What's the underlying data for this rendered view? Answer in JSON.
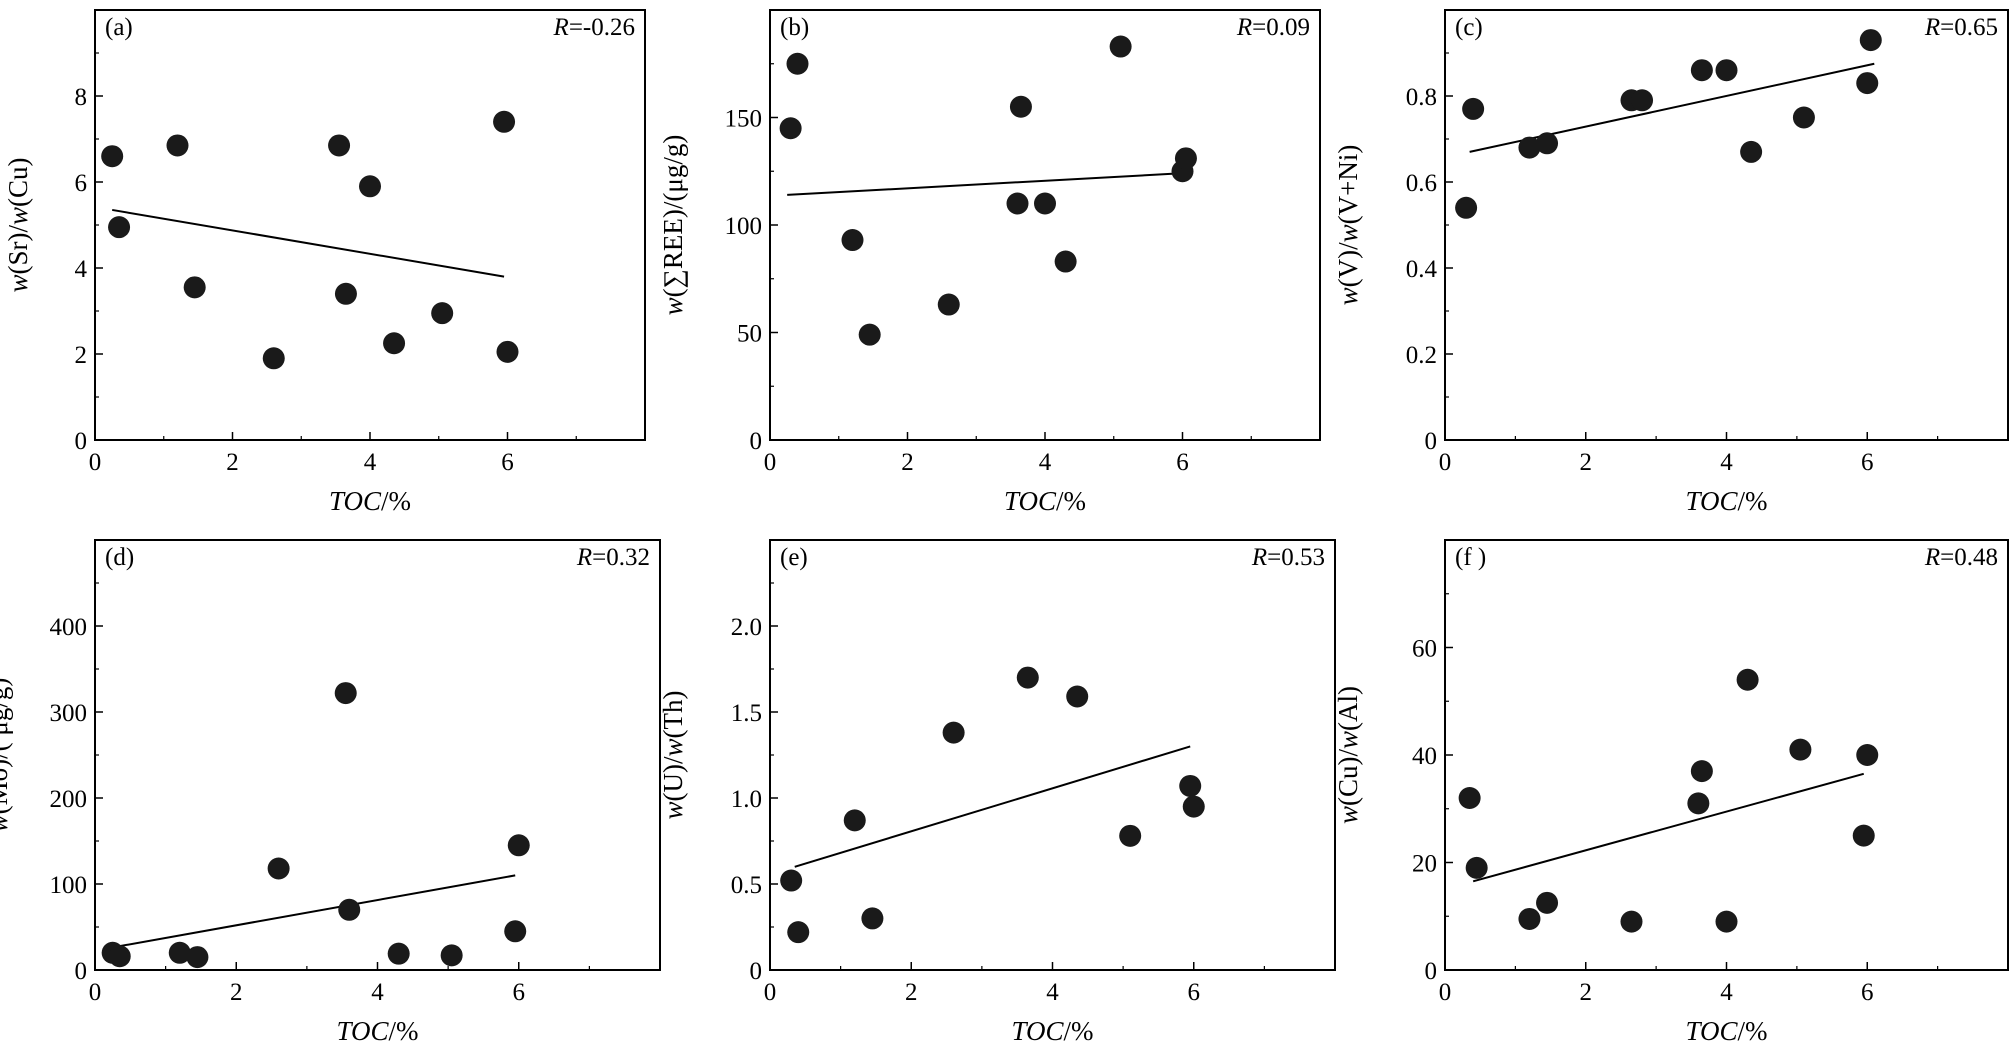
{
  "figure": {
    "background": "#ffffff",
    "marker_color": "#1a1a1a",
    "line_color": "#000000"
  },
  "chart_data": [
    {
      "type": "scatter",
      "panel_label": "(a)",
      "r_label": {
        "var": "R",
        "value": "=-0.26"
      },
      "xlabel": {
        "var": "TOC",
        "unit": "/%"
      },
      "ylabel": {
        "prefix": "w",
        "num": "(Sr)",
        "sep": "/",
        "prefix2": "w",
        "den": "(Cu)"
      },
      "xlim": [
        0,
        8
      ],
      "ylim": [
        0,
        10
      ],
      "xticks": [
        0,
        2,
        4,
        6
      ],
      "xtick_labels": [
        "0",
        "2",
        "4",
        "6"
      ],
      "yticks": [
        0,
        2,
        4,
        6,
        8
      ],
      "ytick_labels": [
        "0",
        "2",
        "4",
        "6",
        "8"
      ],
      "points": [
        [
          0.25,
          6.6
        ],
        [
          0.35,
          4.95
        ],
        [
          1.2,
          6.85
        ],
        [
          1.45,
          3.55
        ],
        [
          2.6,
          1.9
        ],
        [
          3.55,
          6.85
        ],
        [
          3.65,
          3.4
        ],
        [
          4.0,
          5.9
        ],
        [
          4.35,
          2.25
        ],
        [
          5.05,
          2.95
        ],
        [
          5.95,
          7.4
        ],
        [
          6.0,
          2.05
        ]
      ],
      "fit_line": [
        [
          0.25,
          5.35
        ],
        [
          5.95,
          3.8
        ]
      ],
      "grid": false
    },
    {
      "type": "scatter",
      "panel_label": "(b)",
      "r_label": {
        "var": "R",
        "value": "=0.09"
      },
      "xlabel": {
        "var": "TOC",
        "unit": "/%"
      },
      "ylabel": {
        "prefix": "w",
        "num": "(∑REE)",
        "sep": "/",
        "prefix2": "",
        "den": "(μg/g)"
      },
      "xlim": [
        0,
        8
      ],
      "ylim": [
        0,
        200
      ],
      "xticks": [
        0,
        2,
        4,
        6
      ],
      "xtick_labels": [
        "0",
        "2",
        "4",
        "6"
      ],
      "yticks": [
        0,
        50,
        100,
        150
      ],
      "ytick_labels": [
        "0",
        "50",
        "100",
        "150"
      ],
      "points": [
        [
          0.3,
          145
        ],
        [
          0.4,
          175
        ],
        [
          1.2,
          93
        ],
        [
          1.45,
          49
        ],
        [
          2.6,
          63
        ],
        [
          3.6,
          110
        ],
        [
          3.65,
          155
        ],
        [
          4.0,
          110
        ],
        [
          4.3,
          83
        ],
        [
          5.1,
          183
        ],
        [
          6.0,
          125
        ],
        [
          6.05,
          131
        ]
      ],
      "fit_line": [
        [
          0.25,
          114
        ],
        [
          5.95,
          124
        ]
      ],
      "grid": false
    },
    {
      "type": "scatter",
      "panel_label": "(c)",
      "r_label": {
        "var": "R",
        "value": "=0.65"
      },
      "xlabel": {
        "var": "TOC",
        "unit": "/%"
      },
      "ylabel": {
        "prefix": "w",
        "num": "(V)",
        "sep": "/",
        "prefix2": "w",
        "den": "(V+Ni)"
      },
      "xlim": [
        0,
        8
      ],
      "ylim": [
        0,
        1.0
      ],
      "xticks": [
        0,
        2,
        4,
        6
      ],
      "xtick_labels": [
        "0",
        "2",
        "4",
        "6"
      ],
      "yticks": [
        0,
        0.2,
        0.4,
        0.6,
        0.8
      ],
      "ytick_labels": [
        "0",
        "0.2",
        "0.4",
        "0.6",
        "0.8"
      ],
      "points": [
        [
          0.3,
          0.54
        ],
        [
          0.4,
          0.77
        ],
        [
          1.2,
          0.68
        ],
        [
          1.45,
          0.69
        ],
        [
          2.65,
          0.79
        ],
        [
          2.8,
          0.79
        ],
        [
          3.65,
          0.86
        ],
        [
          4.0,
          0.86
        ],
        [
          4.35,
          0.67
        ],
        [
          5.1,
          0.75
        ],
        [
          6.0,
          0.83
        ],
        [
          6.05,
          0.93
        ]
      ],
      "fit_line": [
        [
          0.35,
          0.67
        ],
        [
          6.1,
          0.875
        ]
      ],
      "grid": false
    },
    {
      "type": "scatter",
      "panel_label": "(d)",
      "r_label": {
        "var": "R",
        "value": "=0.32"
      },
      "xlabel": {
        "var": "TOC",
        "unit": "/%"
      },
      "ylabel": {
        "prefix": "w",
        "num": "(Mo)",
        "sep": "/",
        "prefix2": "",
        "den": "( μg/g)"
      },
      "xlim": [
        0,
        8
      ],
      "ylim": [
        0,
        500
      ],
      "xticks": [
        0,
        2,
        4,
        6
      ],
      "xtick_labels": [
        "0",
        "2",
        "4",
        "6"
      ],
      "yticks": [
        0,
        100,
        200,
        300,
        400
      ],
      "ytick_labels": [
        "0",
        "100",
        "200",
        "300",
        "400"
      ],
      "points": [
        [
          0.25,
          20
        ],
        [
          0.35,
          16
        ],
        [
          1.2,
          20
        ],
        [
          1.45,
          15
        ],
        [
          2.6,
          118
        ],
        [
          3.55,
          322
        ],
        [
          3.6,
          70
        ],
        [
          4.3,
          19
        ],
        [
          5.05,
          17
        ],
        [
          5.95,
          45
        ],
        [
          6.0,
          145
        ]
      ],
      "fit_line": [
        [
          0.3,
          27
        ],
        [
          5.95,
          110
        ]
      ],
      "grid": false
    },
    {
      "type": "scatter",
      "panel_label": "(e)",
      "r_label": {
        "var": "R",
        "value": "=0.53"
      },
      "xlabel": {
        "var": "TOC",
        "unit": "/%"
      },
      "ylabel": {
        "prefix": "w",
        "num": "(U)",
        "sep": "/",
        "prefix2": "w",
        "den": "(Th)"
      },
      "xlim": [
        0,
        8
      ],
      "ylim": [
        0,
        2.5
      ],
      "xticks": [
        0,
        2,
        4,
        6
      ],
      "xtick_labels": [
        "0",
        "2",
        "4",
        "6"
      ],
      "yticks": [
        0,
        0.5,
        1.0,
        1.5,
        2.0
      ],
      "ytick_labels": [
        "0",
        "0.5",
        "1.0",
        "1.5",
        "2.0"
      ],
      "points": [
        [
          0.3,
          0.52
        ],
        [
          0.4,
          0.22
        ],
        [
          1.2,
          0.87
        ],
        [
          1.45,
          0.3
        ],
        [
          2.6,
          1.38
        ],
        [
          3.65,
          1.7
        ],
        [
          4.35,
          1.59
        ],
        [
          5.1,
          0.78
        ],
        [
          5.95,
          1.07
        ],
        [
          6.0,
          0.95
        ]
      ],
      "fit_line": [
        [
          0.35,
          0.6
        ],
        [
          5.95,
          1.3
        ]
      ],
      "grid": false
    },
    {
      "type": "scatter",
      "panel_label": "(f )",
      "r_label": {
        "var": "R",
        "value": "=0.48"
      },
      "xlabel": {
        "var": "TOC",
        "unit": "/%"
      },
      "ylabel": {
        "prefix": "w",
        "num": "(Cu)",
        "sep": "/",
        "prefix2": "w",
        "den": "(Al)"
      },
      "xlim": [
        0,
        8
      ],
      "ylim": [
        0,
        80
      ],
      "xticks": [
        0,
        2,
        4,
        6
      ],
      "xtick_labels": [
        "0",
        "2",
        "4",
        "6"
      ],
      "yticks": [
        0,
        20,
        40,
        60
      ],
      "ytick_labels": [
        "0",
        "20",
        "40",
        "60"
      ],
      "points": [
        [
          0.35,
          32
        ],
        [
          0.45,
          19
        ],
        [
          1.2,
          9.5
        ],
        [
          1.45,
          12.5
        ],
        [
          2.65,
          9
        ],
        [
          3.6,
          31
        ],
        [
          3.65,
          37
        ],
        [
          4.0,
          9
        ],
        [
          4.3,
          54
        ],
        [
          5.05,
          41
        ],
        [
          5.95,
          25
        ],
        [
          6.0,
          40
        ]
      ],
      "fit_line": [
        [
          0.4,
          16.5
        ],
        [
          5.95,
          36.5
        ]
      ],
      "grid": false
    }
  ]
}
